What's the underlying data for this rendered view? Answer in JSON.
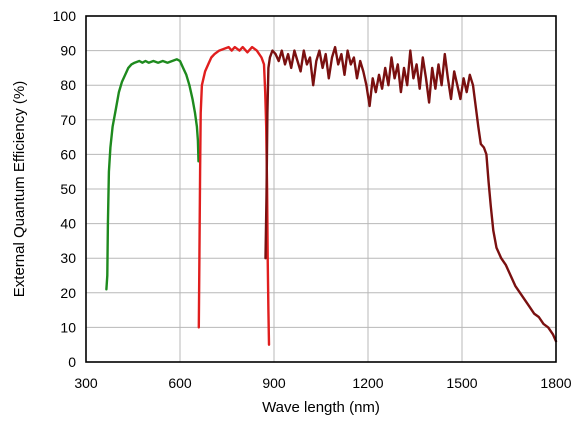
{
  "chart_data": {
    "type": "line",
    "title": "",
    "xlabel": "Wave length (nm)",
    "ylabel": "External Quantum Efficiency (%)",
    "xlim": [
      300,
      1800
    ],
    "ylim": [
      0,
      100
    ],
    "xticks": [
      300,
      600,
      900,
      1200,
      1500,
      1800
    ],
    "yticks": [
      0,
      10,
      20,
      30,
      40,
      50,
      60,
      70,
      80,
      90,
      100
    ],
    "grid": true,
    "legend": "none",
    "series": [
      {
        "color": "#1e8a1e",
        "points": [
          [
            365,
            21
          ],
          [
            368,
            25
          ],
          [
            370,
            40
          ],
          [
            373,
            55
          ],
          [
            378,
            62
          ],
          [
            385,
            68
          ],
          [
            395,
            73
          ],
          [
            405,
            78
          ],
          [
            415,
            81
          ],
          [
            425,
            83
          ],
          [
            435,
            85
          ],
          [
            445,
            86
          ],
          [
            455,
            86.5
          ],
          [
            470,
            87
          ],
          [
            480,
            86.5
          ],
          [
            490,
            87
          ],
          [
            500,
            86.5
          ],
          [
            515,
            87
          ],
          [
            530,
            86.5
          ],
          [
            545,
            87
          ],
          [
            560,
            86.5
          ],
          [
            575,
            87
          ],
          [
            590,
            87.5
          ],
          [
            600,
            87
          ],
          [
            610,
            85
          ],
          [
            620,
            83
          ],
          [
            630,
            80
          ],
          [
            640,
            76
          ],
          [
            648,
            72
          ],
          [
            654,
            68
          ],
          [
            657,
            64
          ],
          [
            659,
            58
          ]
        ]
      },
      {
        "color": "#e01e1e",
        "points": [
          [
            660,
            10
          ],
          [
            662,
            30
          ],
          [
            664,
            55
          ],
          [
            666,
            72
          ],
          [
            670,
            80
          ],
          [
            680,
            84
          ],
          [
            690,
            86
          ],
          [
            700,
            88
          ],
          [
            710,
            89
          ],
          [
            725,
            90
          ],
          [
            740,
            90.5
          ],
          [
            755,
            91
          ],
          [
            765,
            90
          ],
          [
            775,
            91
          ],
          [
            790,
            90
          ],
          [
            800,
            91
          ],
          [
            815,
            89.5
          ],
          [
            830,
            91
          ],
          [
            845,
            90
          ],
          [
            860,
            88
          ],
          [
            868,
            86
          ],
          [
            872,
            78
          ],
          [
            875,
            68
          ],
          [
            878,
            50
          ],
          [
            880,
            30
          ],
          [
            882,
            15
          ],
          [
            884,
            5
          ]
        ]
      },
      {
        "color": "#7a1010",
        "points": [
          [
            873,
            30
          ],
          [
            876,
            48
          ],
          [
            879,
            72
          ],
          [
            882,
            85
          ],
          [
            887,
            88
          ],
          [
            895,
            90
          ],
          [
            905,
            89
          ],
          [
            915,
            87
          ],
          [
            925,
            90
          ],
          [
            935,
            86
          ],
          [
            945,
            89
          ],
          [
            955,
            85
          ],
          [
            965,
            90
          ],
          [
            975,
            87
          ],
          [
            985,
            84
          ],
          [
            995,
            90
          ],
          [
            1005,
            86
          ],
          [
            1015,
            88
          ],
          [
            1025,
            80
          ],
          [
            1035,
            87
          ],
          [
            1045,
            90
          ],
          [
            1055,
            85
          ],
          [
            1065,
            89
          ],
          [
            1075,
            82
          ],
          [
            1085,
            88
          ],
          [
            1095,
            91
          ],
          [
            1105,
            86
          ],
          [
            1115,
            89
          ],
          [
            1125,
            83
          ],
          [
            1135,
            90
          ],
          [
            1145,
            86
          ],
          [
            1155,
            88
          ],
          [
            1165,
            82
          ],
          [
            1175,
            87
          ],
          [
            1185,
            84
          ],
          [
            1195,
            80
          ],
          [
            1205,
            74
          ],
          [
            1215,
            82
          ],
          [
            1225,
            78
          ],
          [
            1235,
            83
          ],
          [
            1245,
            79
          ],
          [
            1255,
            85
          ],
          [
            1265,
            80
          ],
          [
            1275,
            88
          ],
          [
            1285,
            82
          ],
          [
            1295,
            86
          ],
          [
            1305,
            78
          ],
          [
            1315,
            85
          ],
          [
            1325,
            80
          ],
          [
            1335,
            90
          ],
          [
            1345,
            82
          ],
          [
            1355,
            86
          ],
          [
            1365,
            79
          ],
          [
            1375,
            88
          ],
          [
            1385,
            82
          ],
          [
            1395,
            75
          ],
          [
            1405,
            85
          ],
          [
            1415,
            79
          ],
          [
            1425,
            86
          ],
          [
            1435,
            80
          ],
          [
            1445,
            89
          ],
          [
            1455,
            82
          ],
          [
            1465,
            76
          ],
          [
            1475,
            84
          ],
          [
            1485,
            80
          ],
          [
            1495,
            76
          ],
          [
            1505,
            82
          ],
          [
            1515,
            78
          ],
          [
            1525,
            83
          ],
          [
            1535,
            80
          ],
          [
            1545,
            73
          ],
          [
            1552,
            68
          ],
          [
            1560,
            63
          ],
          [
            1570,
            62
          ],
          [
            1578,
            60
          ],
          [
            1585,
            52
          ],
          [
            1592,
            45
          ],
          [
            1600,
            38
          ],
          [
            1610,
            33
          ],
          [
            1625,
            30
          ],
          [
            1640,
            28
          ],
          [
            1655,
            25
          ],
          [
            1670,
            22
          ],
          [
            1685,
            20
          ],
          [
            1700,
            18
          ],
          [
            1715,
            16
          ],
          [
            1730,
            14
          ],
          [
            1745,
            13
          ],
          [
            1760,
            11
          ],
          [
            1775,
            10
          ],
          [
            1790,
            8
          ],
          [
            1800,
            6
          ]
        ]
      }
    ]
  }
}
